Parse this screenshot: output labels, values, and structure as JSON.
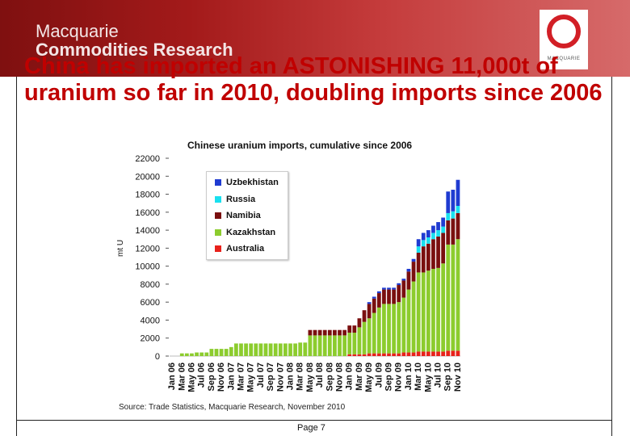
{
  "header": {
    "brand_line1": "Macquarie",
    "brand_line2": "Commodities Research",
    "logo_text": "MACQUARIE"
  },
  "slide": {
    "title": "China has imported an ASTONISHING 11,000t of uranium so far in 2010, doubling imports since 2006"
  },
  "footer": {
    "source": "Source: Trade Statistics, Macquarie Research, November 2010",
    "page": "Page 7"
  },
  "colors": {
    "Uzbekhistan": "#1f3bd1",
    "Russia": "#19e0ef",
    "Namibia": "#7a0f0f",
    "Kazakhstan": "#8ccc2e",
    "Australia": "#e8211b",
    "header_dark": "#7f1010",
    "title_red": "#c00000"
  },
  "chart_data": {
    "type": "bar",
    "stacked": true,
    "title": "Chinese uranium imports, cumulative since 2006",
    "ylabel": "mt U",
    "ylim": [
      0,
      22000
    ],
    "yticks": [
      0,
      2000,
      4000,
      6000,
      8000,
      10000,
      12000,
      14000,
      16000,
      18000,
      20000,
      22000
    ],
    "grid": false,
    "legend_position": "top-left",
    "x_tick_labels": [
      "Jan 06",
      "Mar 06",
      "May 06",
      "Jul 06",
      "Sep 06",
      "Nov 06",
      "Jan 07",
      "Mar 07",
      "May 07",
      "Jul 07",
      "Sep 07",
      "Nov 07",
      "Jan 08",
      "Mar 08",
      "May 08",
      "Jul 08",
      "Sep 08",
      "Nov 08",
      "Jan 09",
      "Mar 09",
      "May 09",
      "Jul 09",
      "Sep 09",
      "Nov 09",
      "Jan 10",
      "Mar 10",
      "May 10",
      "Jul 10",
      "Sep 10",
      "Nov 10"
    ],
    "months": 59,
    "series": [
      {
        "name": "Australia",
        "values": [
          0,
          0,
          0,
          0,
          0,
          0,
          0,
          0,
          0,
          0,
          0,
          0,
          0,
          0,
          0,
          0,
          0,
          0,
          0,
          0,
          0,
          0,
          0,
          0,
          0,
          0,
          0,
          0,
          0,
          0,
          0,
          0,
          0,
          0,
          0,
          0,
          200,
          200,
          200,
          200,
          300,
          300,
          300,
          300,
          300,
          300,
          300,
          400,
          400,
          400,
          500,
          500,
          500,
          500,
          500,
          500,
          600,
          600,
          600
        ]
      },
      {
        "name": "Kazakhstan",
        "values": [
          0,
          0,
          300,
          300,
          300,
          400,
          400,
          400,
          800,
          800,
          800,
          800,
          1000,
          1400,
          1400,
          1400,
          1400,
          1400,
          1400,
          1400,
          1400,
          1400,
          1400,
          1400,
          1400,
          1400,
          1500,
          1500,
          2300,
          2300,
          2300,
          2300,
          2300,
          2300,
          2300,
          2300,
          2400,
          2400,
          3000,
          3600,
          3900,
          4500,
          5100,
          5500,
          5500,
          5500,
          5700,
          6100,
          7000,
          7900,
          8800,
          8800,
          9000,
          9200,
          9300,
          9800,
          11800,
          11800,
          12400
        ]
      },
      {
        "name": "Namibia",
        "values": [
          0,
          0,
          0,
          0,
          0,
          0,
          0,
          0,
          0,
          0,
          0,
          0,
          0,
          0,
          0,
          0,
          0,
          0,
          0,
          0,
          0,
          0,
          0,
          0,
          0,
          0,
          0,
          0,
          600,
          600,
          600,
          600,
          600,
          600,
          600,
          600,
          800,
          800,
          1000,
          1300,
          1600,
          1600,
          1600,
          1600,
          1600,
          1600,
          1900,
          1900,
          2000,
          2200,
          2200,
          2900,
          3000,
          3300,
          3500,
          3400,
          2700,
          2900,
          2900
        ]
      },
      {
        "name": "Russia",
        "values": [
          0,
          0,
          0,
          0,
          0,
          0,
          0,
          0,
          0,
          0,
          0,
          0,
          0,
          0,
          0,
          0,
          0,
          0,
          0,
          0,
          0,
          0,
          0,
          0,
          0,
          0,
          0,
          0,
          0,
          0,
          0,
          0,
          0,
          0,
          0,
          0,
          0,
          0,
          0,
          0,
          0,
          0,
          0,
          0,
          0,
          0,
          0,
          0,
          0,
          0,
          700,
          700,
          700,
          700,
          700,
          700,
          800,
          800,
          800
        ]
      },
      {
        "name": "Uzbekhistan",
        "values": [
          0,
          0,
          0,
          0,
          0,
          0,
          0,
          0,
          0,
          0,
          0,
          0,
          0,
          0,
          0,
          0,
          0,
          0,
          0,
          0,
          0,
          0,
          0,
          0,
          0,
          0,
          0,
          0,
          0,
          0,
          0,
          0,
          0,
          0,
          0,
          0,
          0,
          0,
          0,
          0,
          200,
          200,
          200,
          200,
          200,
          200,
          200,
          200,
          300,
          300,
          800,
          800,
          800,
          800,
          900,
          1000,
          2400,
          2400,
          2900
        ]
      }
    ]
  }
}
